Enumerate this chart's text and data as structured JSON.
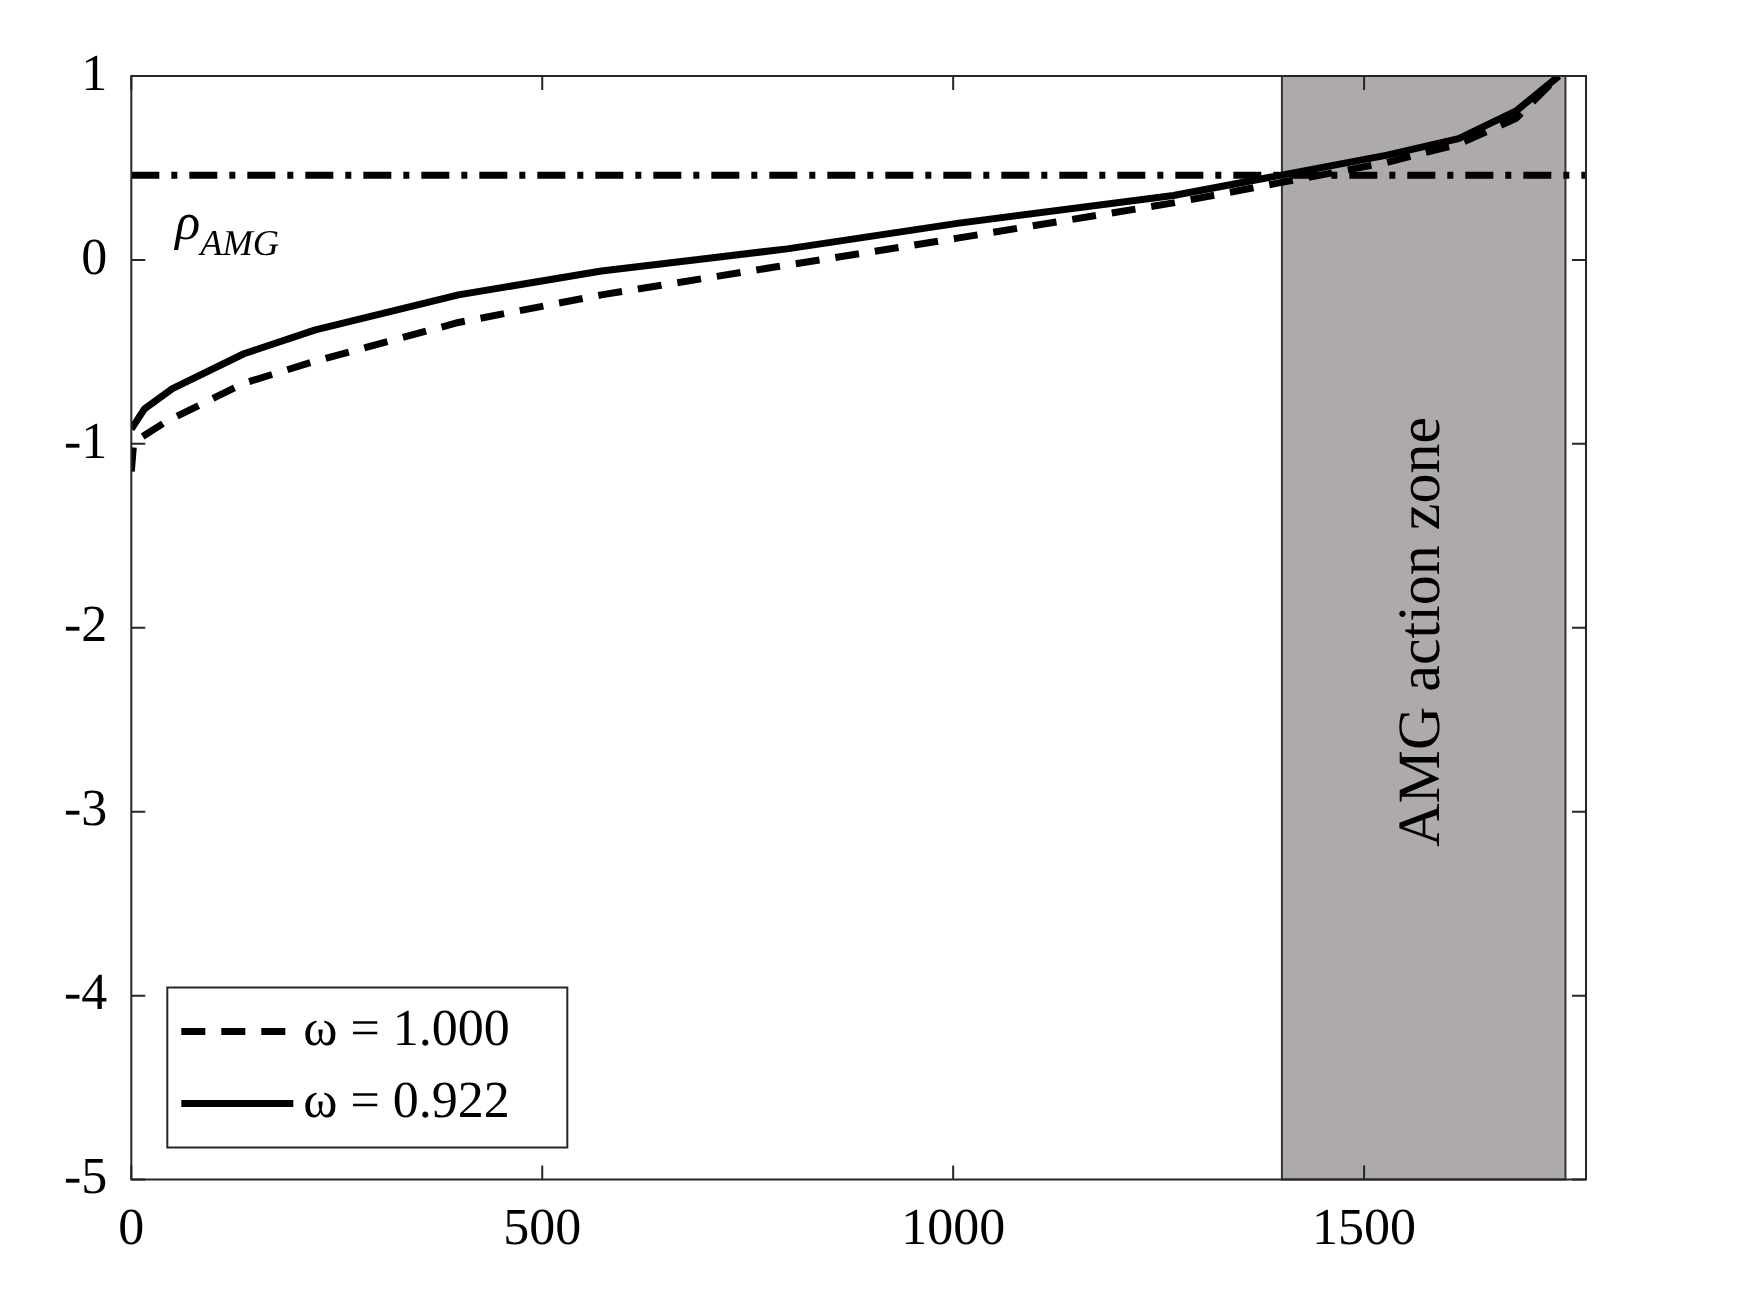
{
  "chart_data": {
    "type": "line",
    "xlim": [
      0,
      1770
    ],
    "xticks": [
      0,
      500,
      1000,
      1500
    ],
    "ylim": [
      -5,
      1
    ],
    "yticks": [
      1,
      0,
      -1,
      -2,
      -3,
      -4,
      -5
    ],
    "grid": false,
    "legend": "bottom left",
    "marker": "none",
    "series": [
      {
        "name": "ω = 1.000",
        "color": "#000000",
        "line_style": "dashed",
        "x": [
          0,
          3,
          42,
          137,
          224,
          398,
          572,
          781,
          1007,
          1268,
          1398,
          1528,
          1615,
          1685,
          1737
        ],
        "values": [
          -1.15,
          -0.99,
          -0.88,
          -0.67,
          -0.55,
          -0.34,
          -0.19,
          -0.04,
          0.12,
          0.31,
          0.42,
          0.53,
          0.63,
          0.77,
          1.0
        ]
      },
      {
        "name": "ω = 0.922",
        "color": "#000000",
        "line_style": "solid",
        "x": [
          0,
          16,
          50,
          137,
          224,
          398,
          572,
          798,
          1007,
          1268,
          1398,
          1528,
          1615,
          1685,
          1737
        ],
        "values": [
          -0.92,
          -0.81,
          -0.7,
          -0.51,
          -0.38,
          -0.19,
          -0.06,
          0.06,
          0.2,
          0.35,
          0.46,
          0.57,
          0.66,
          0.81,
          1.0
        ]
      }
    ],
    "ref_lines": [
      {
        "axis": "y",
        "value": 0.46,
        "label": "ρ$_{AMG}$",
        "line_style": "dashdot",
        "color": "#000000"
      }
    ],
    "bands": [
      {
        "axis": "x",
        "from": 1400,
        "to": 1745,
        "label": "AMG action zone",
        "color": "#aeaaaa"
      }
    ]
  }
}
